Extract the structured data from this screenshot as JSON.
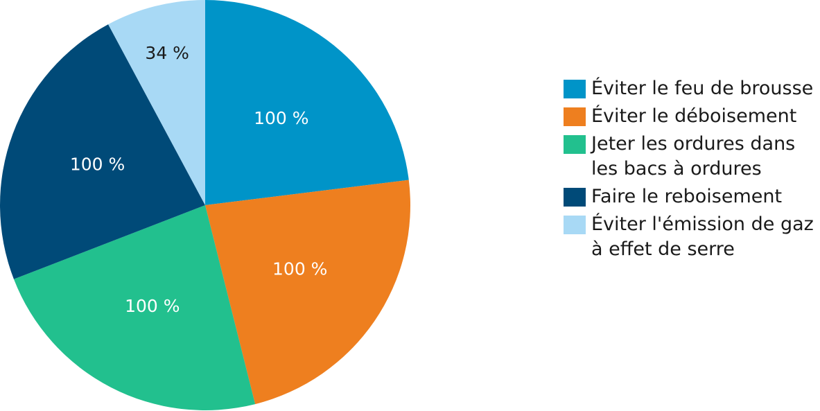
{
  "chart_data": {
    "type": "pie",
    "slices": [
      {
        "label": "Éviter le feu de brousse",
        "value": 100,
        "value_label": "100 %",
        "color": "#0094c8"
      },
      {
        "label": "Éviter le déboisement",
        "value": 100,
        "value_label": "100 %",
        "color": "#ee7f1f"
      },
      {
        "label": "Jeter les ordures dans\nles bacs à ordures",
        "value": 100,
        "value_label": "100 %",
        "color": "#22c08e"
      },
      {
        "label": "Faire le reboisement",
        "value": 100,
        "value_label": "100 %",
        "color": "#004a78"
      },
      {
        "label": "Éviter l'émission de gaz\n à effet de serre",
        "value": 34,
        "value_label": "34 %",
        "color": "#a8d9f5",
        "label_dark": true
      }
    ],
    "legend_position": "right"
  }
}
